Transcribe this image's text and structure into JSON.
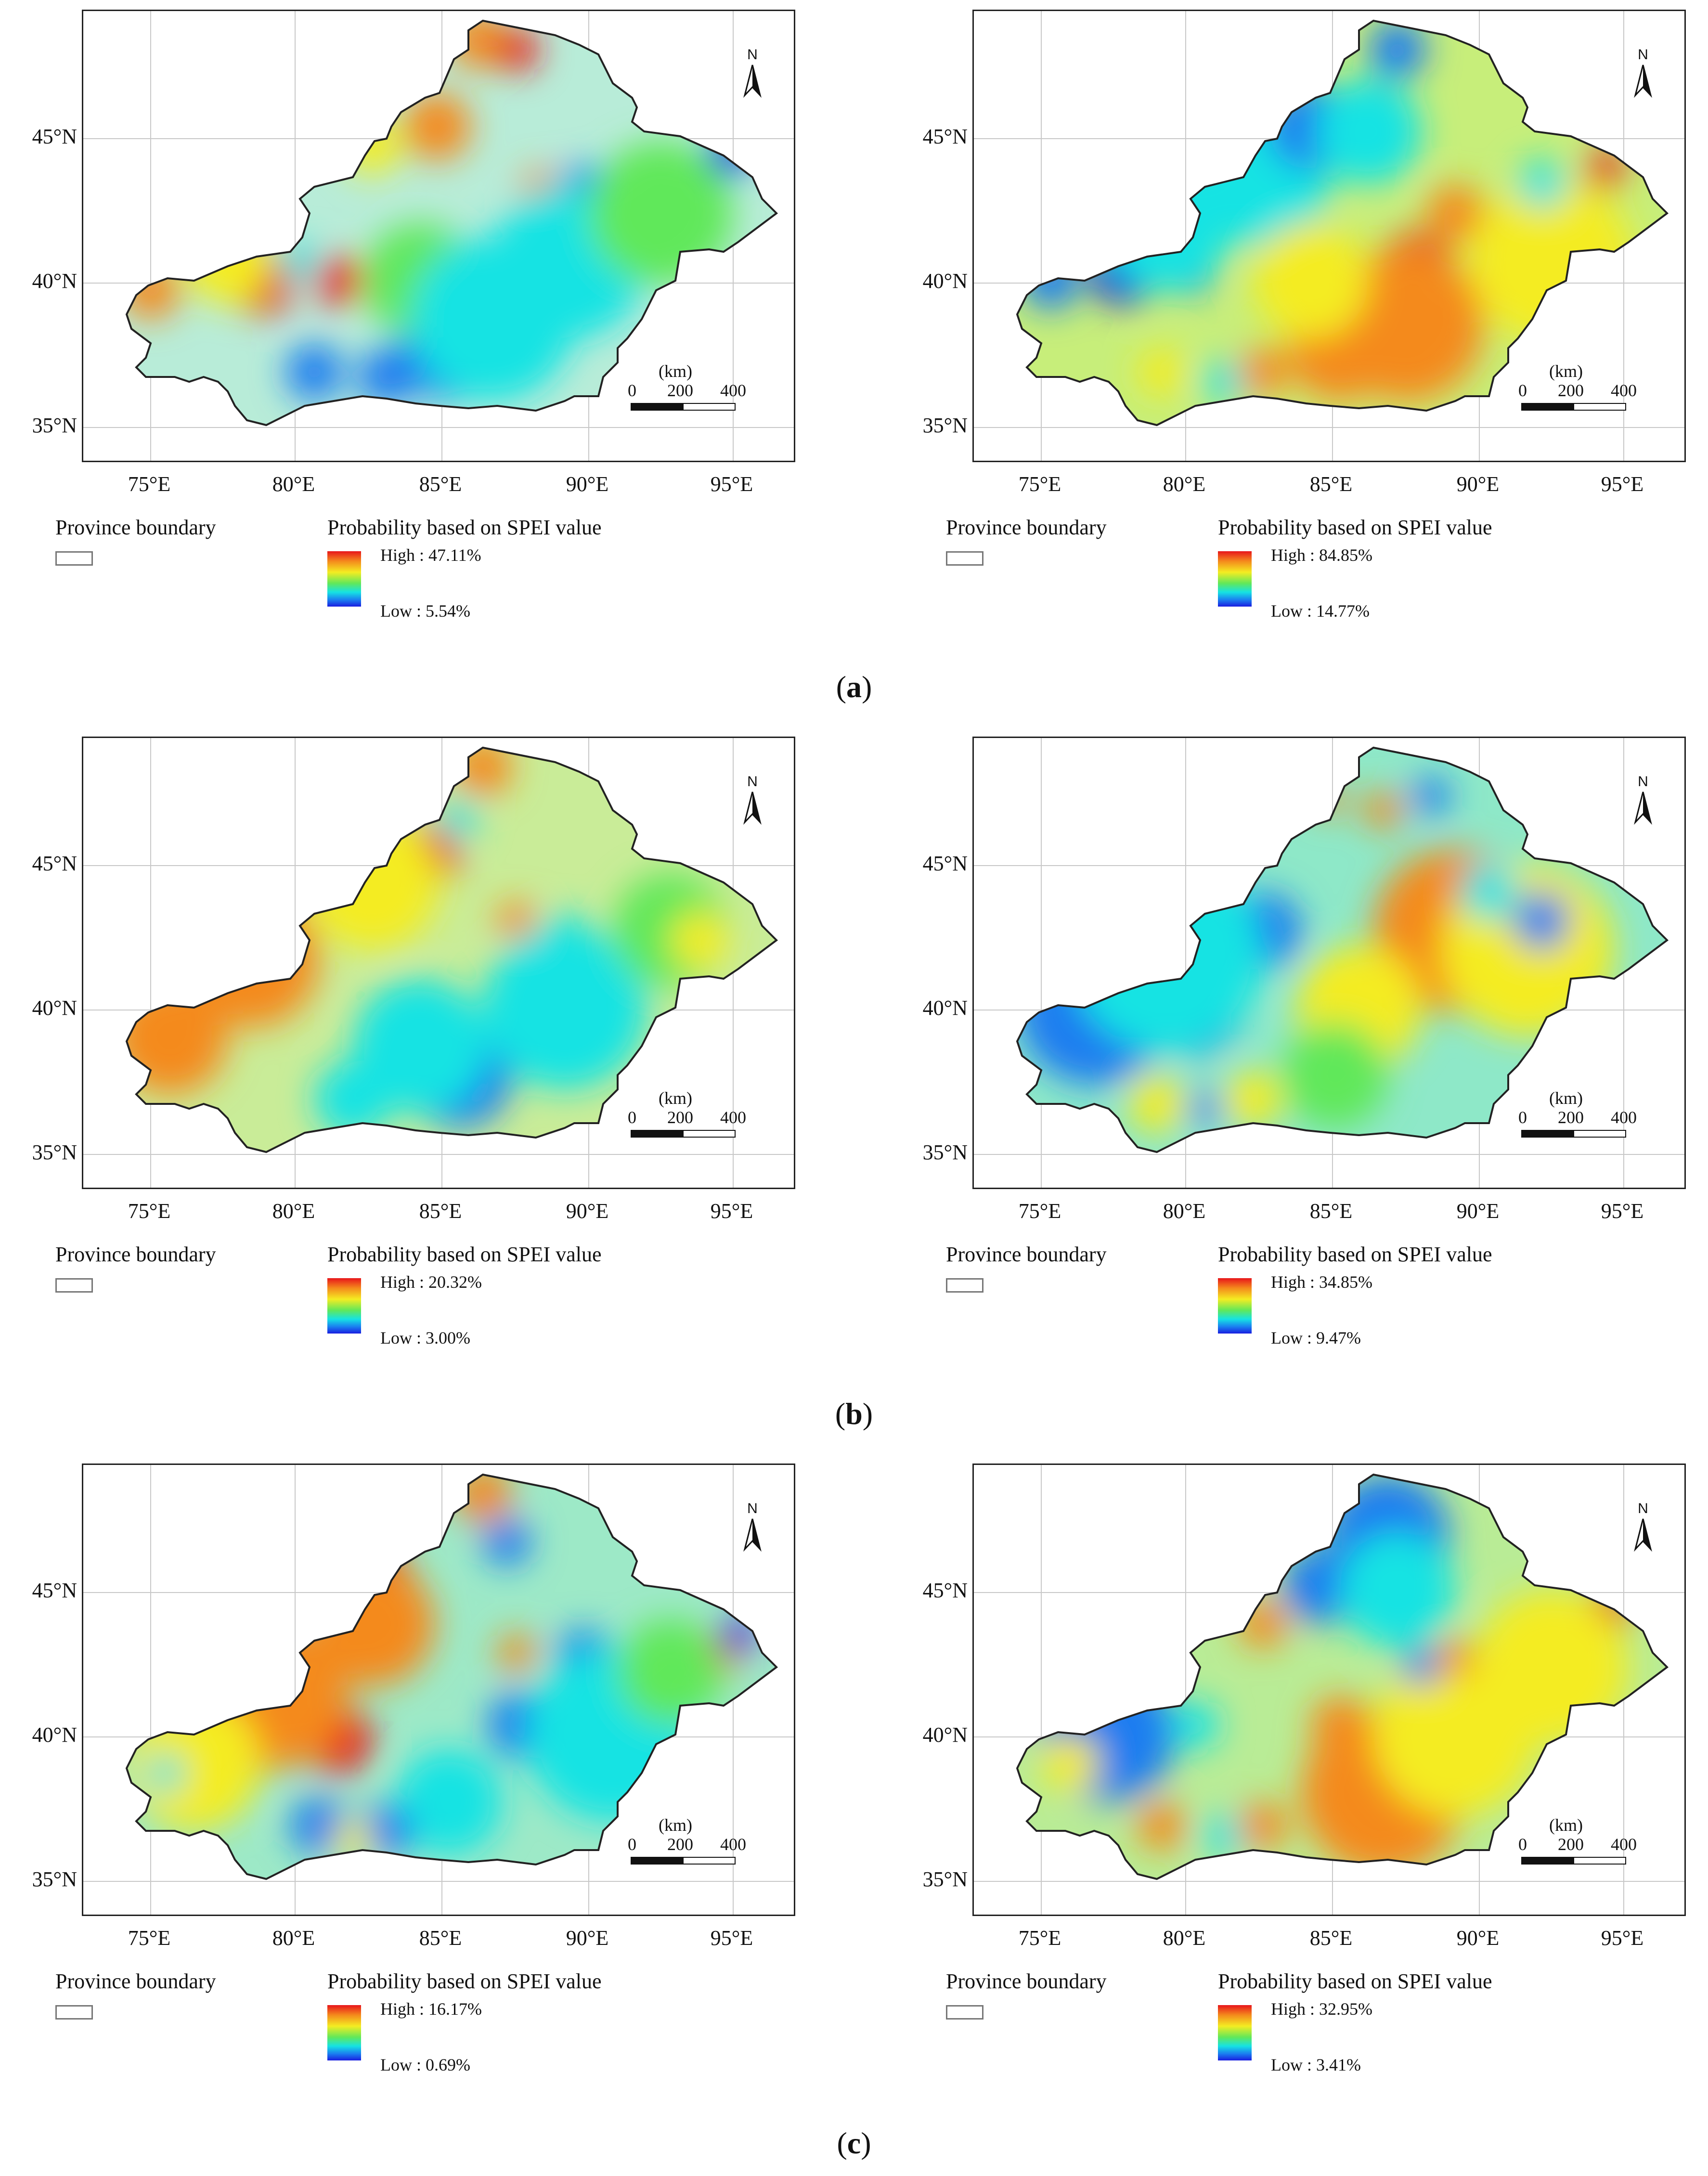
{
  "axes": {
    "x_ticks": [
      "75°E",
      "80°E",
      "85°E",
      "90°E",
      "95°E"
    ],
    "y_ticks": [
      "45°N",
      "40°N",
      "35°N"
    ]
  },
  "legend": {
    "boundary_label": "Province boundary",
    "probability_title": "Probability based on SPEI value"
  },
  "scalebar": {
    "unit": "(km)",
    "ticks": [
      "0",
      "200",
      "400"
    ]
  },
  "north_label": "N",
  "colors": {
    "ramp": [
      "#e8151b",
      "#f48a1c",
      "#f4ec22",
      "#61e85a",
      "#16e3e3",
      "#1a7df0",
      "#1a1ee0"
    ]
  },
  "panels": [
    {
      "row": "a",
      "side": "left",
      "high": "High : 47.11%",
      "low": "Low : 5.54%",
      "base": "#b8ecd8"
    },
    {
      "row": "a",
      "side": "right",
      "high": "High : 84.85%",
      "low": "Low : 14.77%",
      "base": "#c7ee7a"
    },
    {
      "row": "b",
      "side": "left",
      "high": "High : 20.32%",
      "low": "Low : 3.00%",
      "base": "#c9ec98"
    },
    {
      "row": "b",
      "side": "right",
      "high": "High : 34.85%",
      "low": "Low : 9.47%",
      "base": "#8ee8c8"
    },
    {
      "row": "c",
      "side": "left",
      "high": "High : 16.17%",
      "low": "Low : 0.69%",
      "base": "#9de9c7"
    },
    {
      "row": "c",
      "side": "right",
      "high": "High : 32.95%",
      "low": "Low : 3.41%",
      "base": "#b9ec96"
    }
  ],
  "captions": [
    {
      "open": "(",
      "letter": "a",
      "close": ")"
    },
    {
      "open": "(",
      "letter": "b",
      "close": ")"
    },
    {
      "open": "(",
      "letter": "c",
      "close": ")"
    }
  ]
}
